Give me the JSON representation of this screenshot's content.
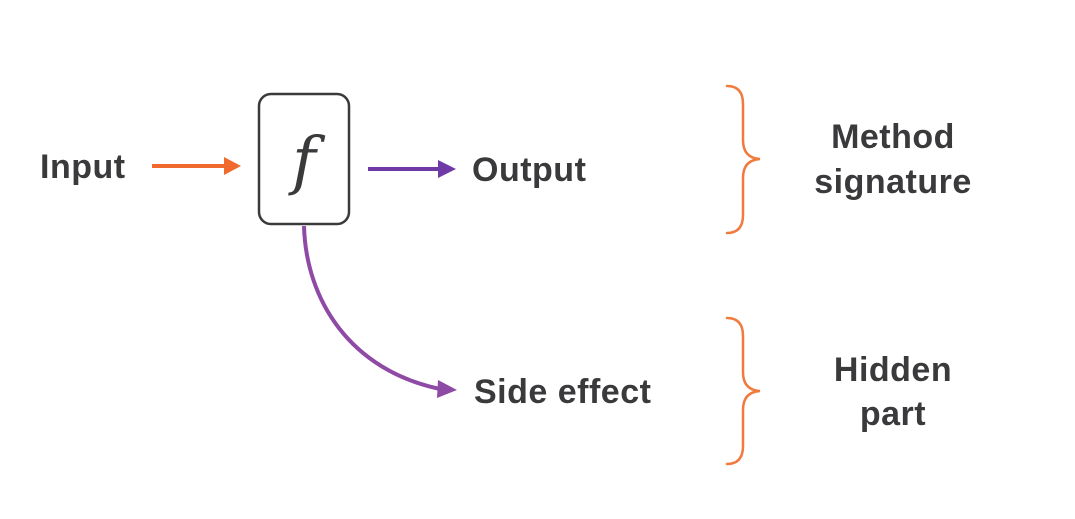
{
  "colors": {
    "input_arrow": "#ef6a2c",
    "output_arrow": "#6f3aa6",
    "side_effect_arrow": "#8e4aa5",
    "brace": "#ef7b3f",
    "text": "#3a3a3c",
    "box_stroke": "#3a3a3c"
  },
  "function_box": {
    "symbol": "f"
  },
  "labels": {
    "input": "Input",
    "output": "Output",
    "side_effect": "Side effect"
  },
  "groups": [
    {
      "line1": "Method",
      "line2": "signature"
    },
    {
      "line1": "Hidden",
      "line2": "part"
    }
  ]
}
